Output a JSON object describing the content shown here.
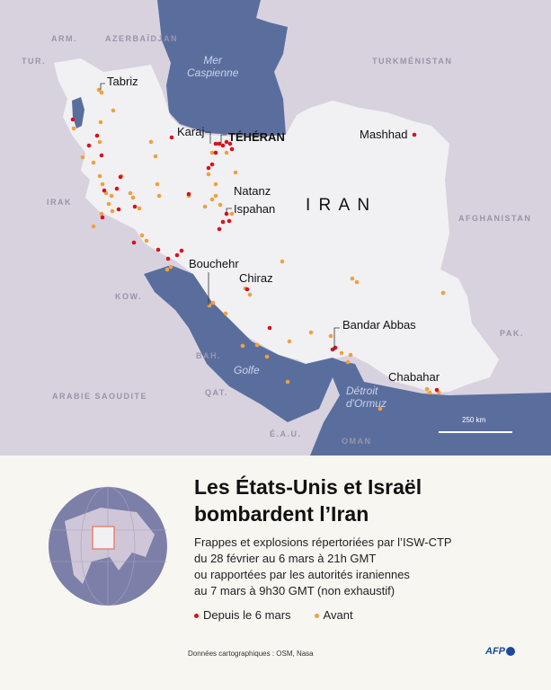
{
  "map": {
    "colors": {
      "land_iran": "#f1f1f3",
      "land_other": "#d8d2df",
      "water": "#5a6e9e",
      "recent": "#d8121e",
      "before": "#f0a040"
    },
    "countries": [
      "ARM.",
      "AZERBAÏDJAN",
      "TUR.",
      "TURKMÉNISTAN",
      "IRAK",
      "AFGHANISTAN",
      "KOW.",
      "PAK.",
      "BAH.",
      "QAT.",
      "ARABIE SAOUDITE",
      "É.A.U.",
      "OMAN"
    ],
    "country_main": "I R A N",
    "seas": {
      "caspian": "Mer\nCaspienne",
      "gulf": "Golfe",
      "hormuz": "Détroit\nd'Ormuz"
    },
    "cities": {
      "tabriz": "Tabriz",
      "karaj": "Karaj",
      "tehran": "TÉHÉRAN",
      "mashhad": "Mashhad",
      "natanz": "Natanz",
      "ispahan": "Ispahan",
      "bouchehr": "Bouchehr",
      "chiraz": "Chiraz",
      "bandar_abbas": "Bandar Abbas",
      "chabahar": "Chabahar"
    },
    "scale": "250 km"
  },
  "panel": {
    "title": "Les États-Unis et Israël bombardent l’Iran",
    "subtitle": [
      "Frappes et explosions répertoriées par l’ISW-CTP",
      "du 28 février au 6 mars à 21h GMT",
      "ou rapportées par les autorités iraniennes",
      "au 7 mars à 9h30 GMT (non exhaustif)"
    ],
    "legend": [
      {
        "label": "Depuis le 6 mars",
        "color": "#d8121e"
      },
      {
        "label": "Avant",
        "color": "#f0a040"
      }
    ],
    "credit": "Données cartographiques : OSM, Nasa",
    "logo": "AFP"
  }
}
